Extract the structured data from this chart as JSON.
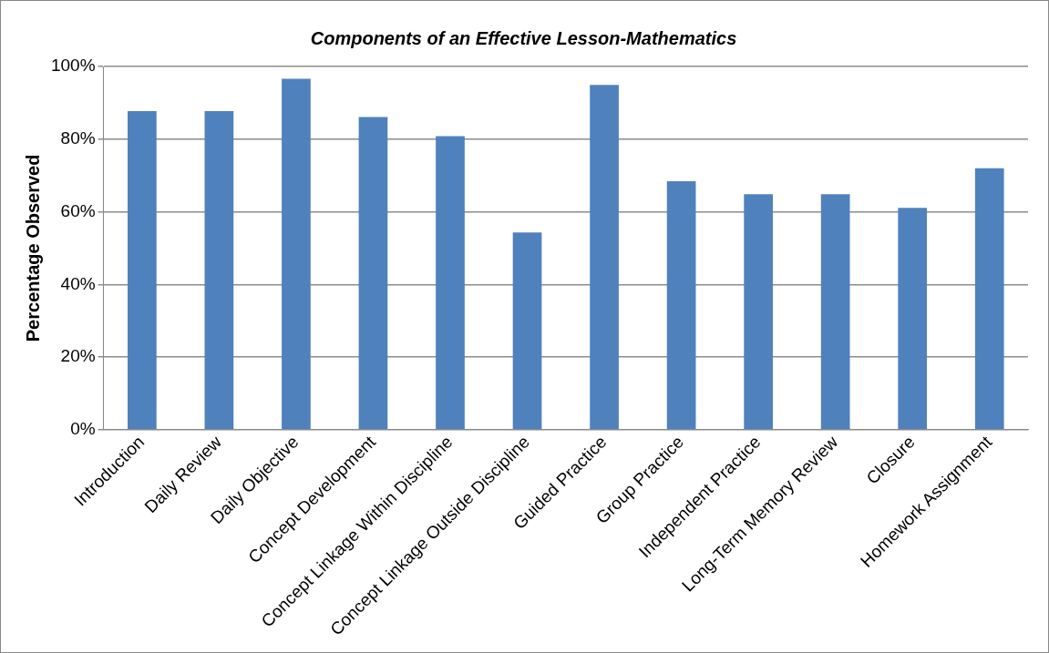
{
  "chart_data": {
    "type": "bar",
    "title": "Components of an Effective Lesson-Mathematics",
    "ylabel": "Percentage Observed",
    "categories": [
      "Introduction",
      "Daily Review",
      "Daily Objective",
      "Concept Development",
      "Concept Linkage Within Discipline",
      "Concept Linkage Outside Discipline",
      "Guided Practice",
      "Group Practice",
      "Independent Practice",
      "Long-Term Memory Review",
      "Closure",
      "Homework Assignment"
    ],
    "values": [
      87.7,
      87.7,
      96.6,
      86.1,
      80.8,
      54.3,
      94.9,
      68.4,
      64.8,
      64.8,
      61.1,
      72
    ],
    "color": "#4f81bd",
    "ylim": [
      0,
      100
    ],
    "yticks": [
      {
        "value": 0,
        "label": "0%"
      },
      {
        "value": 20,
        "label": "20%"
      },
      {
        "value": 40,
        "label": "40%"
      },
      {
        "value": 60,
        "label": "60%"
      },
      {
        "value": 80,
        "label": "80%"
      },
      {
        "value": 100,
        "label": "100%"
      }
    ],
    "grid": "y",
    "legend": false
  }
}
